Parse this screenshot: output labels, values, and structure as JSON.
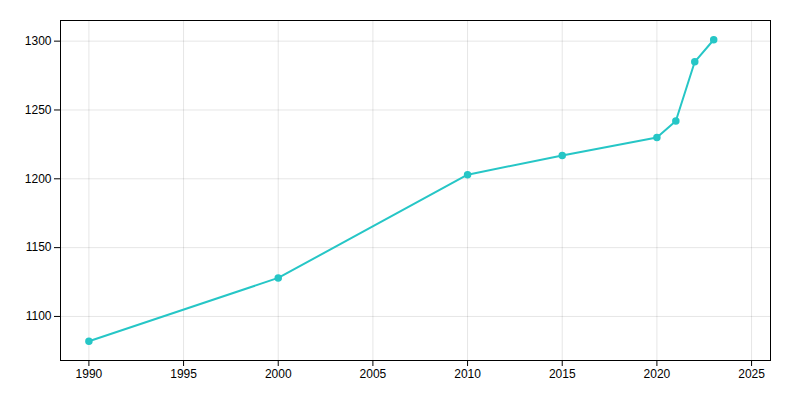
{
  "chart_data": {
    "type": "line",
    "x": [
      1990,
      2000,
      2010,
      2015,
      2020,
      2021,
      2022,
      2023
    ],
    "values": [
      1082,
      1128,
      1203,
      1217,
      1230,
      1242,
      1285,
      1301
    ],
    "color": "#26c6c6",
    "marker": "circle",
    "xlim": [
      1988.5,
      2026
    ],
    "ylim": [
      1068,
      1315
    ],
    "xticks": [
      1990,
      1995,
      2000,
      2005,
      2010,
      2015,
      2020,
      2025
    ],
    "yticks": [
      1100,
      1150,
      1200,
      1250,
      1300
    ],
    "grid": true
  }
}
